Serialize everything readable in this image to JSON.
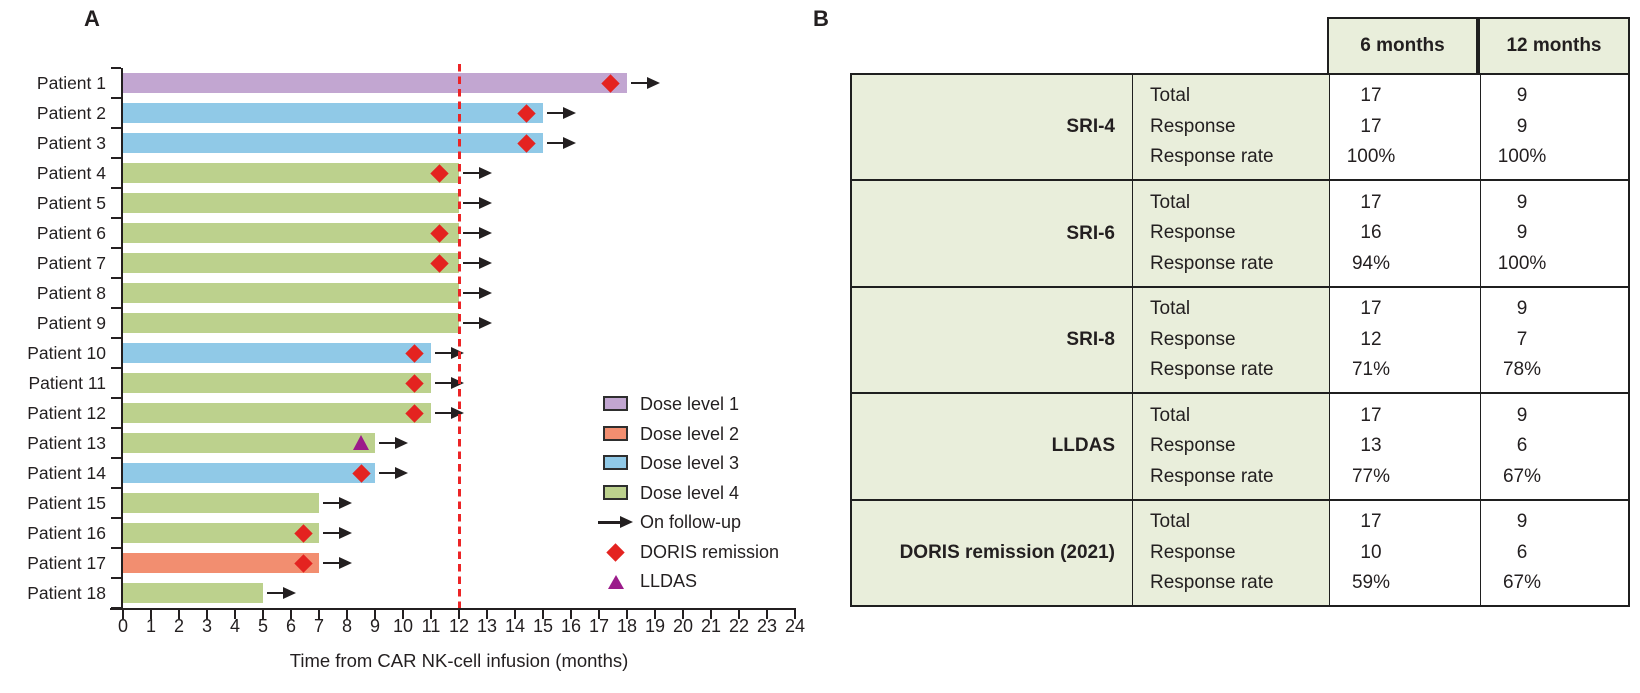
{
  "colors": {
    "dose_level_1": "#c2a6d1",
    "dose_level_2": "#f28e70",
    "dose_level_3": "#90c9e7",
    "dose_level_4": "#bcd18d",
    "doris_marker": "#e42320",
    "lldas_marker": "#9b1b8a",
    "reference_line": "#ec2426",
    "table_header_bg": "#e9eedb",
    "axis_text": "#231f20"
  },
  "chart_data": [
    {
      "type": "bar",
      "panel": "A",
      "orientation": "horizontal-swimmer",
      "xlabel": "Time from CAR NK-cell infusion (months)",
      "xlim": [
        0,
        24
      ],
      "x_tick_interval": 1,
      "grid": false,
      "reference_line": {
        "x": 12,
        "style": "dashed",
        "color": "#ec2426"
      },
      "legend_position": "right-middle",
      "patients": [
        {
          "label": "Patient 1",
          "dose": "Dose level 1",
          "months": 18,
          "on_followup": true,
          "event": "DORIS remission",
          "event_month": 17.4
        },
        {
          "label": "Patient 2",
          "dose": "Dose level 3",
          "months": 15,
          "on_followup": true,
          "event": "DORIS remission",
          "event_month": 14.4
        },
        {
          "label": "Patient 3",
          "dose": "Dose level 3",
          "months": 15,
          "on_followup": true,
          "event": "DORIS remission",
          "event_month": 14.4
        },
        {
          "label": "Patient 4",
          "dose": "Dose level 4",
          "months": 12,
          "on_followup": true,
          "event": "DORIS remission",
          "event_month": 11.3
        },
        {
          "label": "Patient 5",
          "dose": "Dose level 4",
          "months": 12,
          "on_followup": true,
          "event": null,
          "event_month": null
        },
        {
          "label": "Patient 6",
          "dose": "Dose level 4",
          "months": 12,
          "on_followup": true,
          "event": "DORIS remission",
          "event_month": 11.3
        },
        {
          "label": "Patient 7",
          "dose": "Dose level 4",
          "months": 12,
          "on_followup": true,
          "event": "DORIS remission",
          "event_month": 11.3
        },
        {
          "label": "Patient 8",
          "dose": "Dose level 4",
          "months": 12,
          "on_followup": true,
          "event": null,
          "event_month": null
        },
        {
          "label": "Patient 9",
          "dose": "Dose level 4",
          "months": 12,
          "on_followup": true,
          "event": null,
          "event_month": null
        },
        {
          "label": "Patient 10",
          "dose": "Dose level 3",
          "months": 11,
          "on_followup": true,
          "event": "DORIS remission",
          "event_month": 10.4
        },
        {
          "label": "Patient 11",
          "dose": "Dose level 4",
          "months": 11,
          "on_followup": true,
          "event": "DORIS remission",
          "event_month": 10.4
        },
        {
          "label": "Patient 12",
          "dose": "Dose level 4",
          "months": 11,
          "on_followup": true,
          "event": "DORIS remission",
          "event_month": 10.4
        },
        {
          "label": "Patient 13",
          "dose": "Dose level 4",
          "months": 9,
          "on_followup": true,
          "event": "LLDAS",
          "event_month": 8.5
        },
        {
          "label": "Patient 14",
          "dose": "Dose level 3",
          "months": 9,
          "on_followup": true,
          "event": "DORIS remission",
          "event_month": 8.5
        },
        {
          "label": "Patient 15",
          "dose": "Dose level 4",
          "months": 7,
          "on_followup": true,
          "event": null,
          "event_month": null
        },
        {
          "label": "Patient 16",
          "dose": "Dose level 4",
          "months": 7,
          "on_followup": true,
          "event": "DORIS remission",
          "event_month": 6.45
        },
        {
          "label": "Patient 17",
          "dose": "Dose level 2",
          "months": 7,
          "on_followup": true,
          "event": "DORIS remission",
          "event_month": 6.45
        },
        {
          "label": "Patient 18",
          "dose": "Dose level 4",
          "months": 5,
          "on_followup": true,
          "event": null,
          "event_month": null
        }
      ],
      "legend_items": [
        {
          "glyph": "swatch",
          "label": "Dose level 1",
          "color": "#c2a6d1"
        },
        {
          "glyph": "swatch",
          "label": "Dose level 2",
          "color": "#f28e70"
        },
        {
          "glyph": "swatch",
          "label": "Dose level 3",
          "color": "#90c9e7"
        },
        {
          "glyph": "swatch",
          "label": "Dose level 4",
          "color": "#bcd18d"
        },
        {
          "glyph": "arrow",
          "label": "On follow-up",
          "color": "#231f20"
        },
        {
          "glyph": "diamond",
          "label": "DORIS remission",
          "color": "#e42320"
        },
        {
          "glyph": "triangle",
          "label": "LLDAS",
          "color": "#9b1b8a"
        }
      ]
    },
    {
      "type": "table",
      "panel": "B",
      "column_headers": [
        "6 months",
        "12 months"
      ],
      "groups": [
        {
          "label": "SRI-4",
          "rows": [
            [
              "Total",
              "17",
              "9"
            ],
            [
              "Response",
              "17",
              "9"
            ],
            [
              "Response rate",
              "100%",
              "100%"
            ]
          ]
        },
        {
          "label": "SRI-6",
          "rows": [
            [
              "Total",
              "17",
              "9"
            ],
            [
              "Response",
              "16",
              "9"
            ],
            [
              "Response rate",
              "94%",
              "100%"
            ]
          ]
        },
        {
          "label": "SRI-8",
          "rows": [
            [
              "Total",
              "17",
              "9"
            ],
            [
              "Response",
              "12",
              "7"
            ],
            [
              "Response rate",
              "71%",
              "78%"
            ]
          ]
        },
        {
          "label": "LLDAS",
          "rows": [
            [
              "Total",
              "17",
              "9"
            ],
            [
              "Response",
              "13",
              "6"
            ],
            [
              "Response rate",
              "77%",
              "67%"
            ]
          ]
        },
        {
          "label": "DORIS remission (2021)",
          "rows": [
            [
              "Total",
              "17",
              "9"
            ],
            [
              "Response",
              "10",
              "6"
            ],
            [
              "Response rate",
              "59%",
              "67%"
            ]
          ]
        }
      ]
    }
  ]
}
